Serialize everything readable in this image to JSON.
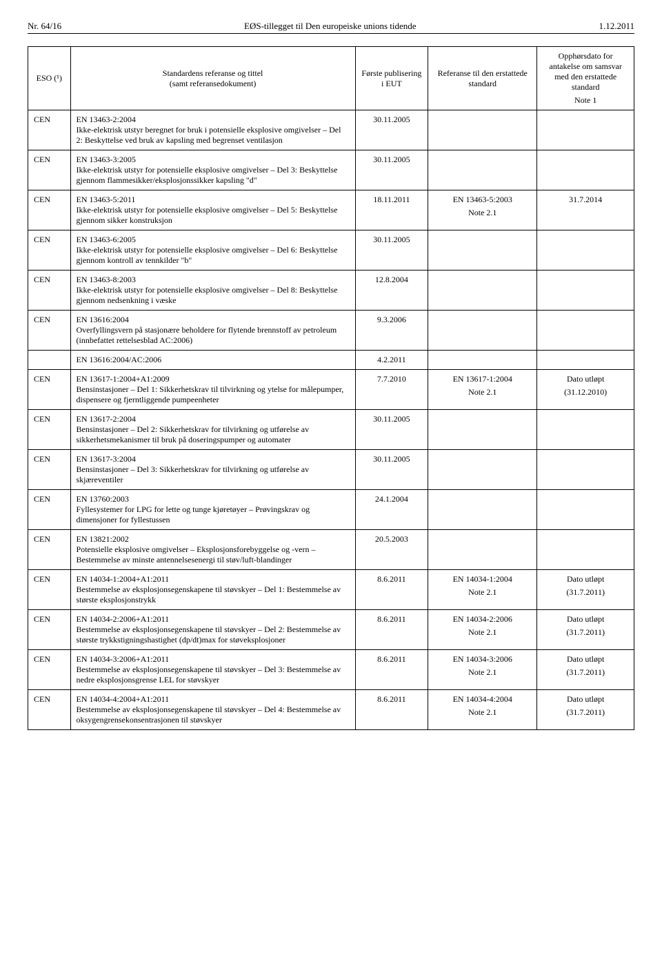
{
  "header": {
    "left": "Nr. 64/16",
    "center": "EØS-tillegget til Den europeiske unions tidende",
    "right": "1.12.2011"
  },
  "columns": {
    "c1": "ESO (¹)",
    "c2": "Standardens referanse og tittel\n(samt referansedokument)",
    "c3": "Første publisering i EUT",
    "c4": "Referanse til den erstattede standard",
    "c5_top": "Opphørsdato for antakelse om samsvar med den erstattede standard",
    "c5_note": "Note 1"
  },
  "rows": [
    {
      "eso": "CEN",
      "title": "EN 13463-2:2004\nIkke-elektrisk utstyr beregnet for bruk i potensielle eksplosive omgivelser – Del 2: Beskyttelse ved bruk av kapsling med begrenset ventilasjon",
      "date": "30.11.2005",
      "ref": "",
      "refnote": "",
      "exp": "",
      "expnote": ""
    },
    {
      "eso": "CEN",
      "title": "EN 13463-3:2005\nIkke-elektrisk utstyr for potensielle eksplosive omgivelser – Del 3: Beskyttelse gjennom flammesikker/eksplosjonssikker kapsling \"d\"",
      "date": "30.11.2005",
      "ref": "",
      "refnote": "",
      "exp": "",
      "expnote": ""
    },
    {
      "eso": "CEN",
      "title": "EN 13463-5:2011\nIkke-elektrisk utstyr for potensielle eksplosive omgivelser – Del 5: Beskyttelse gjennom sikker konstruksjon",
      "date": "18.11.2011",
      "ref": "EN 13463-5:2003",
      "refnote": "Note 2.1",
      "exp": "31.7.2014",
      "expnote": ""
    },
    {
      "eso": "CEN",
      "title": "EN 13463-6:2005\nIkke-elektrisk utstyr for potensielle eksplosive omgivelser – Del 6: Beskyttelse gjennom kontroll av tennkilder \"b\"",
      "date": "30.11.2005",
      "ref": "",
      "refnote": "",
      "exp": "",
      "expnote": ""
    },
    {
      "eso": "CEN",
      "title": "EN 13463-8:2003\nIkke-elektrisk utstyr for potensielle eksplosive omgivelser – Del 8: Beskyttelse gjennom nedsenkning i væske",
      "date": "12.8.2004",
      "ref": "",
      "refnote": "",
      "exp": "",
      "expnote": ""
    },
    {
      "eso": "CEN",
      "title": "EN 13616:2004\nOverfyllingsvern på stasjonære beholdere for flytende brennstoff av petroleum (innbefattet rettelsesblad AC:2006)",
      "date": "9.3.2006",
      "ref": "",
      "refnote": "",
      "exp": "",
      "expnote": ""
    },
    {
      "eso": "",
      "title": "EN 13616:2004/AC:2006",
      "date": "4.2.2011",
      "ref": "",
      "refnote": "",
      "exp": "",
      "expnote": ""
    },
    {
      "eso": "CEN",
      "title": "EN 13617-1:2004+A1:2009\nBensinstasjoner – Del 1: Sikkerhetskrav til tilvirkning og ytelse for målepumper, dispensere og fjerntliggende pumpeenheter",
      "date": "7.7.2010",
      "ref": "EN 13617-1:2004",
      "refnote": "Note 2.1",
      "exp": "Dato utløpt",
      "expnote": "(31.12.2010)"
    },
    {
      "eso": "CEN",
      "title": "EN 13617-2:2004\nBensinstasjoner – Del 2: Sikkerhetskrav for tilvirkning og utførelse av sikkerhetsmekanismer til bruk på doseringspumper og automater",
      "date": "30.11.2005",
      "ref": "",
      "refnote": "",
      "exp": "",
      "expnote": ""
    },
    {
      "eso": "CEN",
      "title": "EN 13617-3:2004\nBensinstasjoner – Del 3: Sikkerhetskrav for tilvirkning og utførelse av skjæreventiler",
      "date": "30.11.2005",
      "ref": "",
      "refnote": "",
      "exp": "",
      "expnote": ""
    },
    {
      "eso": "CEN",
      "title": "EN 13760:2003\nFyllesystemer for LPG for lette og tunge kjøretøyer – Prøvingskrav og dimensjoner for fyllestussen",
      "date": "24.1.2004",
      "ref": "",
      "refnote": "",
      "exp": "",
      "expnote": ""
    },
    {
      "eso": "CEN",
      "title": "EN 13821:2002\nPotensielle eksplosive omgivelser – Eksplosjonsforebyggelse og -vern – Bestemmelse av minste antennelsesenergi til støv/luft-blandinger",
      "date": "20.5.2003",
      "ref": "",
      "refnote": "",
      "exp": "",
      "expnote": ""
    },
    {
      "eso": "CEN",
      "title": "EN 14034-1:2004+A1:2011\nBestemmelse av eksplosjonsegenskapene til støvskyer – Del 1: Bestemmelse av største eksplosjonstrykk",
      "date": "8.6.2011",
      "ref": "EN 14034-1:2004",
      "refnote": "Note 2.1",
      "exp": "Dato utløpt",
      "expnote": "(31.7.2011)"
    },
    {
      "eso": "CEN",
      "title": "EN 14034-2:2006+A1:2011\nBestemmelse av eksplosjonsegenskapene til støvskyer – Del 2: Bestemmelse av største trykkstigningshastighet (dp/dt)max for støveksplosjoner",
      "date": "8.6.2011",
      "ref": "EN 14034-2:2006",
      "refnote": "Note 2.1",
      "exp": "Dato utløpt",
      "expnote": "(31.7.2011)"
    },
    {
      "eso": "CEN",
      "title": "EN 14034-3:2006+A1:2011\nBestemmelse av eksplosjonsegenskapene til støvskyer – Del 3: Bestemmelse av nedre eksplosjonsgrense LEL for støvskyer",
      "date": "8.6.2011",
      "ref": "EN 14034-3:2006",
      "refnote": "Note 2.1",
      "exp": "Dato utløpt",
      "expnote": "(31.7.2011)"
    },
    {
      "eso": "CEN",
      "title": "EN 14034-4:2004+A1:2011\nBestemmelse av eksplosjonsegenskapene til støvskyer – Del 4: Bestemmelse av oksygengrensekonsentrasjonen til støvskyer",
      "date": "8.6.2011",
      "ref": "EN 14034-4:2004",
      "refnote": "Note 2.1",
      "exp": "Dato utløpt",
      "expnote": "(31.7.2011)"
    }
  ]
}
